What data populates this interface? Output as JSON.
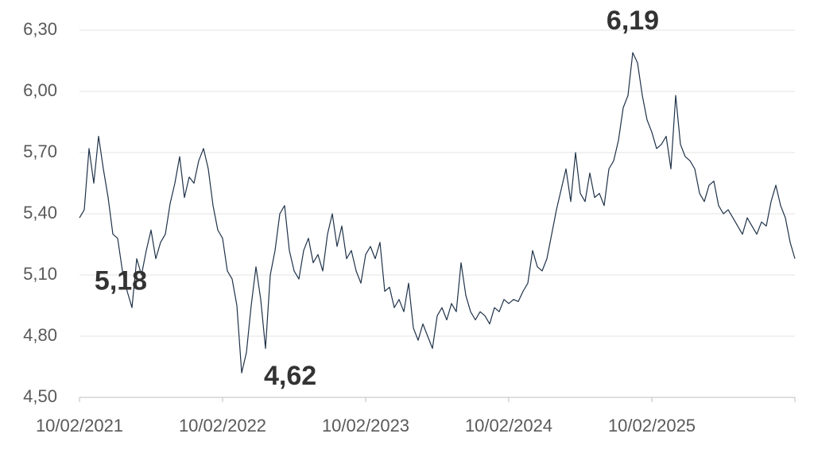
{
  "chart_data": {
    "type": "line",
    "categories": [
      "10/02/2021",
      null,
      null,
      null,
      null,
      null,
      null,
      null,
      null,
      null,
      null,
      null,
      null,
      null,
      null,
      null,
      null,
      null,
      null,
      null,
      null,
      null,
      null,
      null,
      null,
      null,
      null,
      null,
      null,
      null,
      "10/02/2022",
      null,
      null,
      null,
      null,
      null,
      null,
      null,
      null,
      null,
      null,
      null,
      null,
      null,
      null,
      null,
      null,
      null,
      null,
      null,
      null,
      null,
      null,
      null,
      null,
      null,
      null,
      null,
      null,
      null,
      "10/02/2023",
      null,
      null,
      null,
      null,
      null,
      null,
      null,
      null,
      null,
      null,
      null,
      null,
      null,
      null,
      null,
      null,
      null,
      null,
      null,
      null,
      null,
      null,
      null,
      null,
      null,
      null,
      null,
      null,
      null,
      "10/02/2024",
      null,
      null,
      null,
      null,
      null,
      null,
      null,
      null,
      null,
      null,
      null,
      null,
      null,
      null,
      null,
      null,
      null,
      null,
      null,
      null,
      null,
      null,
      null,
      null,
      null,
      null,
      null,
      null,
      null,
      "10/02/2025",
      null,
      null,
      null,
      null,
      null,
      null,
      null,
      null,
      null,
      null,
      null,
      null,
      null,
      null,
      null,
      null,
      null,
      null,
      null,
      null,
      null,
      null,
      null,
      null,
      null,
      null,
      null,
      null,
      null,
      null
    ],
    "values": [
      5.38,
      5.42,
      5.72,
      5.55,
      5.78,
      5.62,
      5.48,
      5.3,
      5.28,
      5.12,
      5.02,
      4.94,
      5.18,
      5.1,
      5.22,
      5.32,
      5.18,
      5.26,
      5.3,
      5.45,
      5.55,
      5.68,
      5.48,
      5.58,
      5.55,
      5.66,
      5.72,
      5.62,
      5.44,
      5.32,
      5.28,
      5.12,
      5.08,
      4.95,
      4.62,
      4.72,
      4.95,
      5.14,
      4.98,
      4.74,
      5.1,
      5.22,
      5.4,
      5.44,
      5.22,
      5.12,
      5.08,
      5.22,
      5.28,
      5.16,
      5.2,
      5.12,
      5.3,
      5.4,
      5.24,
      5.34,
      5.18,
      5.22,
      5.12,
      5.06,
      5.2,
      5.24,
      5.18,
      5.26,
      5.02,
      5.04,
      4.94,
      4.98,
      4.92,
      5.06,
      4.84,
      4.78,
      4.86,
      4.8,
      4.74,
      4.9,
      4.94,
      4.88,
      4.96,
      4.92,
      5.16,
      5.0,
      4.92,
      4.88,
      4.92,
      4.9,
      4.86,
      4.94,
      4.92,
      4.98,
      4.96,
      4.98,
      4.97,
      5.02,
      5.06,
      5.22,
      5.14,
      5.12,
      5.18,
      5.3,
      5.42,
      5.52,
      5.62,
      5.46,
      5.7,
      5.5,
      5.46,
      5.6,
      5.48,
      5.5,
      5.44,
      5.62,
      5.66,
      5.76,
      5.92,
      5.98,
      6.19,
      6.14,
      5.98,
      5.86,
      5.8,
      5.72,
      5.74,
      5.78,
      5.62,
      5.98,
      5.74,
      5.68,
      5.66,
      5.62,
      5.5,
      5.46,
      5.54,
      5.56,
      5.44,
      5.4,
      5.42,
      5.38,
      5.34,
      5.3,
      5.38,
      5.34,
      5.3,
      5.36,
      5.34,
      5.46,
      5.54,
      5.44,
      5.38,
      5.26,
      5.18
    ],
    "color": "#1f3249",
    "ylim": [
      4.5,
      6.3
    ],
    "yticks": [
      {
        "value": 4.5,
        "label": "4,50"
      },
      {
        "value": 4.8,
        "label": "4,80"
      },
      {
        "value": 5.1,
        "label": "5,10"
      },
      {
        "value": 5.4,
        "label": "5,40"
      },
      {
        "value": 5.7,
        "label": "5,70"
      },
      {
        "value": 6.0,
        "label": "6,00"
      },
      {
        "value": 6.3,
        "label": "6,30"
      }
    ],
    "grid": true,
    "annotations": [
      {
        "label": "6,19",
        "value": 6.19
      },
      {
        "label": "4,62",
        "value": 4.62
      },
      {
        "label": "5,18",
        "value": 5.18
      }
    ]
  }
}
